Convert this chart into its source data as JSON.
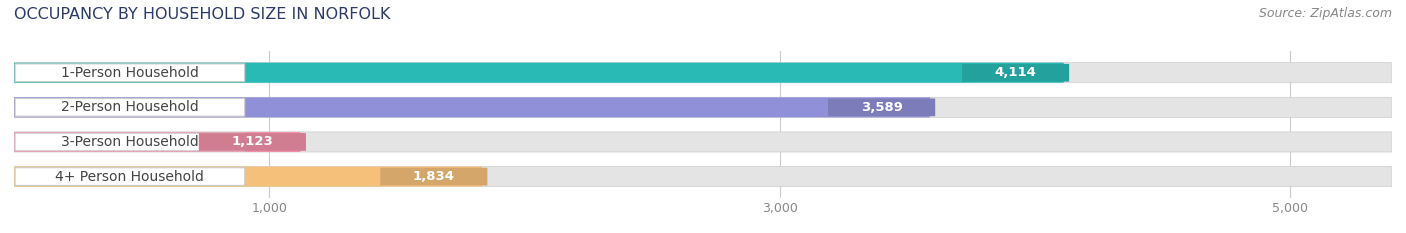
{
  "title": "OCCUPANCY BY HOUSEHOLD SIZE IN NORFOLK",
  "source": "Source: ZipAtlas.com",
  "categories": [
    "1-Person Household",
    "2-Person Household",
    "3-Person Household",
    "4+ Person Household"
  ],
  "values": [
    4114,
    3589,
    1123,
    1834
  ],
  "bar_colors": [
    "#29bab5",
    "#9090d8",
    "#f090a8",
    "#f5c07a"
  ],
  "xlim_max": 5400,
  "xticks": [
    1000,
    3000,
    5000
  ],
  "bar_height": 0.58,
  "figsize": [
    14.06,
    2.33
  ],
  "dpi": 100,
  "bg_color": "#ffffff",
  "bar_bg_color": "#e4e4e4",
  "title_fontsize": 11.5,
  "source_fontsize": 9,
  "label_fontsize": 10,
  "value_fontsize": 9.5,
  "title_color": "#2b3a6b",
  "label_color": "#444444",
  "tick_color": "#888888"
}
